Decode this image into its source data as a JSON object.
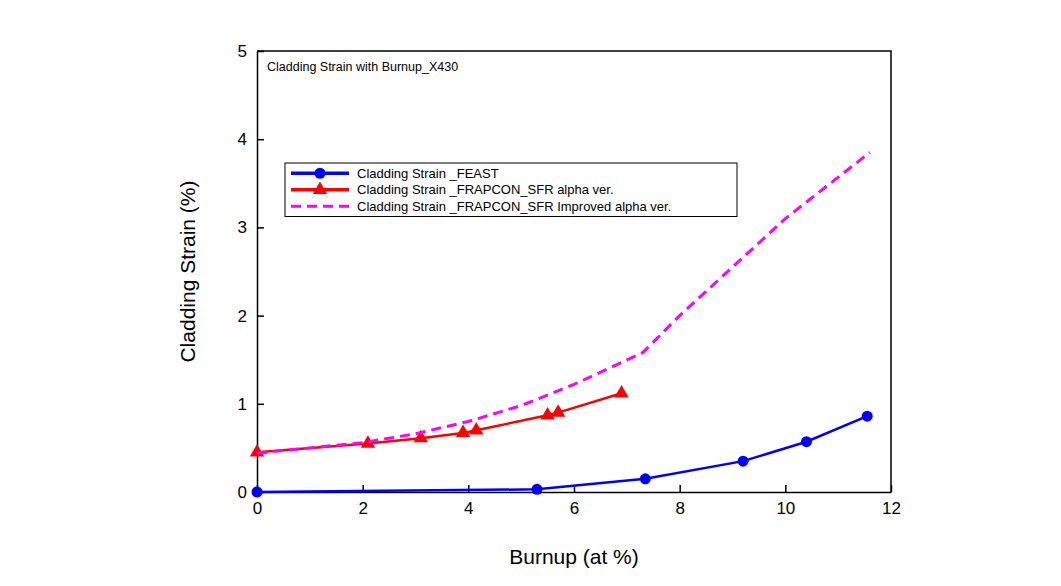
{
  "chart_data": {
    "type": "line",
    "title": "Cladding Strain with Burnup_X430",
    "x_label": "Burnup (at %)",
    "y_label": "Cladding Strain (%)",
    "xlim": [
      0,
      12
    ],
    "ylim": [
      0,
      5
    ],
    "xticks": [
      0,
      2,
      4,
      6,
      8,
      10,
      12
    ],
    "yticks": [
      0,
      1,
      2,
      3,
      4,
      5
    ],
    "legend": "upper left",
    "grid": false,
    "series": [
      {
        "name": "Cladding Strain _FEAST",
        "color": "#0000ff",
        "marker": "circle",
        "line_style": "solid",
        "x": [
          0,
          5.3,
          7.35,
          9.2,
          10.4,
          11.55
        ],
        "values": [
          0.0,
          0.03,
          0.15,
          0.35,
          0.57,
          0.86
        ]
      },
      {
        "name": "Cladding Strain _FRAPCON_SFR alpha ver.",
        "color": "#ff0000",
        "marker": "triangle",
        "line_style": "solid",
        "x": [
          0,
          2.1,
          3.1,
          3.9,
          4.15,
          5.5,
          5.7,
          6.9
        ],
        "values": [
          0.45,
          0.55,
          0.61,
          0.67,
          0.7,
          0.87,
          0.9,
          1.12
        ]
      },
      {
        "name": "Cladding Strain _FRAPCON_SFR Improved alpha ver.",
        "color": "#ff00ff",
        "marker": "none",
        "line_style": "dashed",
        "x": [
          0,
          2,
          3,
          4,
          5,
          6,
          7.3,
          8,
          9,
          10,
          11.6
        ],
        "values": [
          0.44,
          0.56,
          0.66,
          0.8,
          0.98,
          1.22,
          1.58,
          2.0,
          2.55,
          3.1,
          3.85
        ]
      }
    ]
  }
}
